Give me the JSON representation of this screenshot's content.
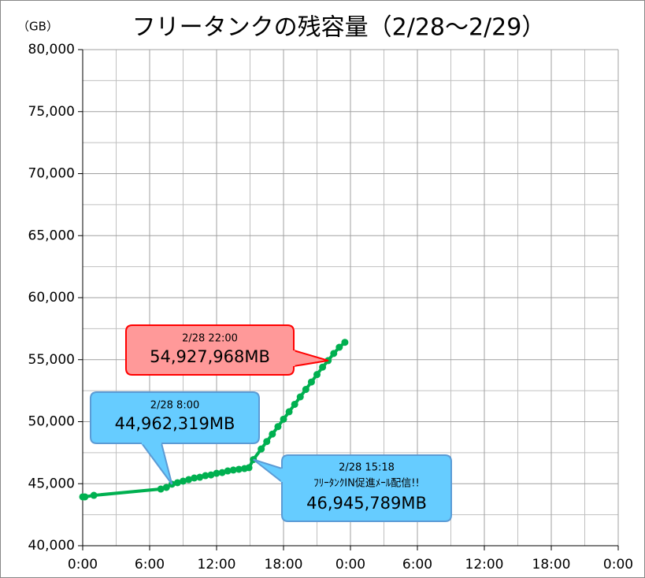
{
  "chart_data": {
    "type": "line",
    "title": "フリータンクの残容量（2/28～2/29）",
    "y_unit": "（GB）",
    "xlim": [
      0,
      48
    ],
    "ylim": [
      40000,
      80000
    ],
    "xticks": [
      {
        "value": 0,
        "label": "0:00"
      },
      {
        "value": 6,
        "label": "6:00"
      },
      {
        "value": 12,
        "label": "12:00"
      },
      {
        "value": 18,
        "label": "18:00"
      },
      {
        "value": 24,
        "label": "0:00"
      },
      {
        "value": 30,
        "label": "6:00"
      },
      {
        "value": 36,
        "label": "12:00"
      },
      {
        "value": 42,
        "label": "18:00"
      },
      {
        "value": 48,
        "label": "0:00"
      }
    ],
    "yticks": [
      {
        "value": 40000,
        "label": "40,000"
      },
      {
        "value": 45000,
        "label": "45,000"
      },
      {
        "value": 50000,
        "label": "50,000"
      },
      {
        "value": 55000,
        "label": "55,000"
      },
      {
        "value": 60000,
        "label": "60,000"
      },
      {
        "value": 65000,
        "label": "65,000"
      },
      {
        "value": 70000,
        "label": "70,000"
      },
      {
        "value": 75000,
        "label": "75,000"
      },
      {
        "value": 80000,
        "label": "80,000"
      }
    ],
    "grid": true,
    "series": [
      {
        "color": "#00b050",
        "x": [
          0,
          0.2,
          1,
          7,
          7.5,
          8,
          8.5,
          9,
          9.5,
          10,
          10.5,
          11,
          11.5,
          12,
          12.5,
          13,
          13.5,
          14,
          14.5,
          14.9,
          15.3,
          16,
          16.5,
          17,
          17.5,
          18,
          18.5,
          19,
          19.5,
          20,
          20.5,
          21,
          21.5,
          22,
          22.5,
          23,
          23.5
        ],
        "values": [
          43940,
          43940,
          44060,
          44570,
          44700,
          44962,
          45080,
          45210,
          45330,
          45460,
          45520,
          45650,
          45710,
          45840,
          45900,
          46030,
          46100,
          46160,
          46220,
          46290,
          46946,
          47800,
          48400,
          49000,
          49600,
          50200,
          50800,
          51400,
          52000,
          52600,
          53200,
          53800,
          54400,
          54928,
          55500,
          56000,
          56400
        ]
      }
    ],
    "annotations": [
      {
        "date": "2/28 22:00",
        "label": "54,927,968MB",
        "color": "#ff9999",
        "border": "#ff0000"
      },
      {
        "date": "2/28 8:00",
        "label": "44,962,319MB",
        "color": "#66ccff",
        "border": "#5b9bd5"
      },
      {
        "date": "2/28 15:18",
        "note": "ﾌﾘｰﾀﾝｸIN促進ﾒｰﾙ配信!!",
        "label": "46,945,789MB",
        "color": "#66ccff",
        "border": "#5b9bd5"
      }
    ]
  }
}
